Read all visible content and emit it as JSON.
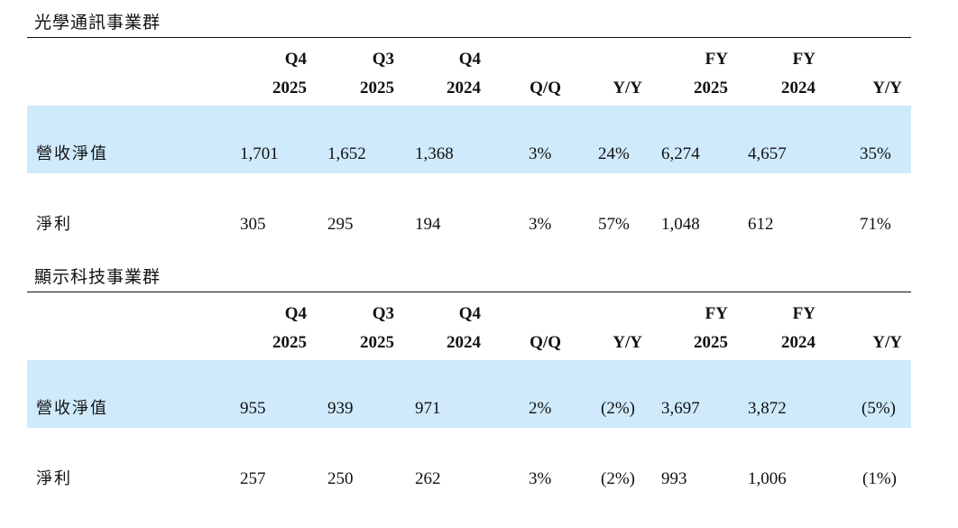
{
  "columns": [
    {
      "line1": "Q4",
      "line2": "2025"
    },
    {
      "line1": "Q3",
      "line2": "2025"
    },
    {
      "line1": "Q4",
      "line2": "2024"
    },
    {
      "line1": "",
      "line2": "Q/Q"
    },
    {
      "line1": "",
      "line2": "Y/Y"
    },
    {
      "line1": "FY",
      "line2": "2025"
    },
    {
      "line1": "FY",
      "line2": "2024"
    },
    {
      "line1": "",
      "line2": "Y/Y"
    }
  ],
  "sections": [
    {
      "title": "光學通訊事業群",
      "rows": [
        {
          "label": "營收淨值",
          "cells": [
            "1,701",
            "1,652",
            "1,368",
            "3%",
            "24%",
            "6,274",
            "4,657",
            "35%"
          ]
        },
        {
          "label": "淨利",
          "cells": [
            "305",
            "295",
            "194",
            "3%",
            "57%",
            "1,048",
            "612",
            "71%"
          ]
        }
      ]
    },
    {
      "title": "顯示科技事業群",
      "rows": [
        {
          "label": "營收淨值",
          "cells": [
            "955",
            "939",
            "971",
            "2%",
            "(2%)",
            "3,697",
            "3,872",
            "(5%)"
          ]
        },
        {
          "label": "淨利",
          "cells": [
            "257",
            "250",
            "262",
            "3%",
            "(2%)",
            "993",
            "1,006",
            "(1%)"
          ]
        }
      ]
    }
  ]
}
